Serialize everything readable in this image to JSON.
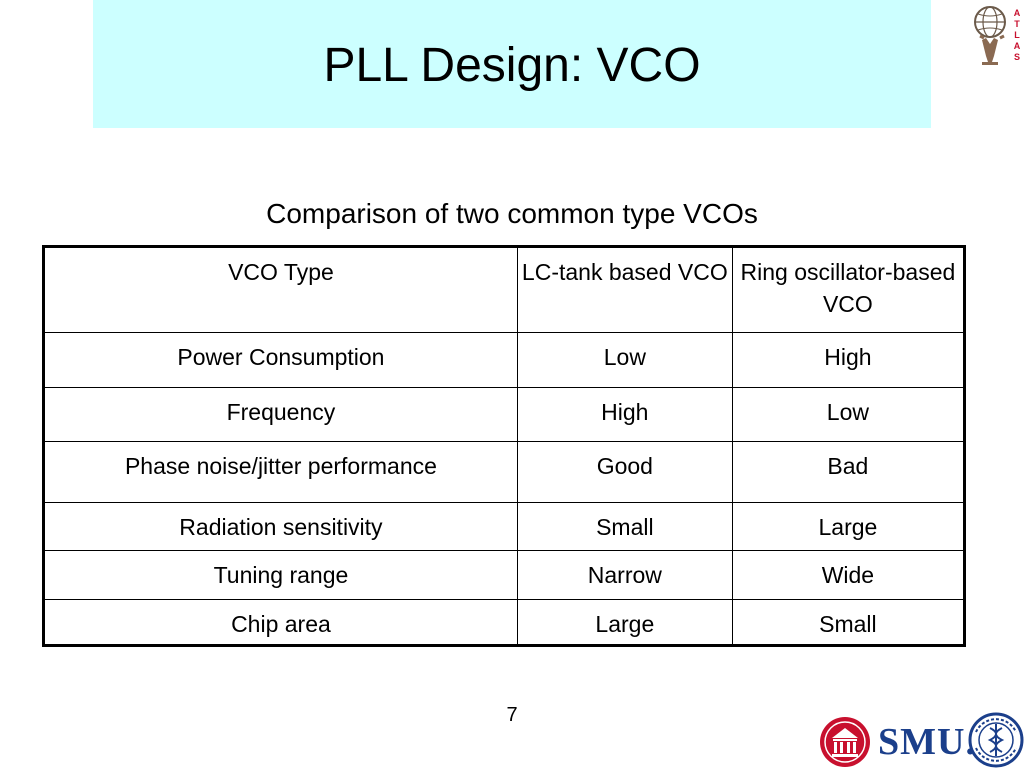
{
  "title": "PLL Design: VCO",
  "subtitle": "Comparison of two common type VCOs",
  "table": {
    "header": {
      "col1": "VCO Type",
      "col2": "LC-tank based VCO",
      "col3": "Ring oscillator-based VCO"
    },
    "rows": [
      {
        "label": "Power Consumption",
        "lc": "Low",
        "ring": "High"
      },
      {
        "label": "Frequency",
        "lc": "High",
        "ring": "Low"
      },
      {
        "label": "Phase noise/jitter performance",
        "lc": "Good",
        "ring": "Bad"
      },
      {
        "label": "Radiation sensitivity",
        "lc": "Small",
        "ring": "Large"
      },
      {
        "label": "Tuning range",
        "lc": "Narrow",
        "ring": "Wide"
      },
      {
        "label": "Chip area",
        "lc": "Large",
        "ring": "Small"
      }
    ]
  },
  "page_number": "7",
  "logos": {
    "atlas_text": "ATLAS",
    "smu_text": "SMU",
    "smu_mark": ".",
    "atlas_icon": "atlas-logo-icon",
    "smu_shield_icon": "smu-shield-icon",
    "academia_seal_icon": "academia-sinica-seal-icon"
  },
  "colors": {
    "title_background": "#ccffff",
    "smu_blue": "#1b3f8b",
    "smu_red": "#c8102e"
  }
}
